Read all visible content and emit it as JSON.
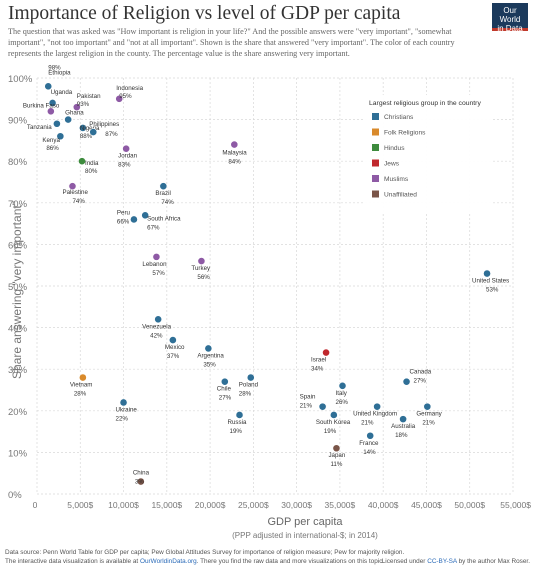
{
  "header": {
    "title": "Importance of Religion vs level of GDP per capita",
    "subtitle_1": "The question that was asked was \"How important is religion in your life?\" And the possible answers were \"very important\", \"somewhat important\", \"not too important\" and \"not at all important\". Shown is the share that answered \"very important\".",
    "subtitle_2": "The color of each country represents the largest religion in the county. The percentage value is the share answering very important.",
    "logo_line1": "Our World",
    "logo_line2": "in Data"
  },
  "footer": {
    "line1": "Data source: Penn World Table for GDP per capita; Pew Global Attitudes Survey for importance of religion measure; Pew for majority religion.",
    "line2_a": "The interactive data visualization is available at ",
    "line2_link": "OurWorldinData.org",
    "line2_b": ". There you find the raw data and more visualizations on this topic.",
    "license_a": "Licensed under ",
    "license_link": "CC-BY-SA",
    "license_b": " by the author Max Roser."
  },
  "colors": {
    "Christians": "#2f6f96",
    "Folk Religions": "#d98a2b",
    "Hindus": "#3d8b3d",
    "Jews": "#c0282d",
    "Muslims": "#8e5aa5",
    "Unaffiliated": "#7a5548",
    "grid": "#d8d8d8",
    "axis_text": "#777777"
  },
  "chart_data": {
    "type": "scatter",
    "xlabel": "GDP per capita",
    "xlabel_sub": "(PPP adjusted in international-$; in 2014)",
    "ylabel": "Share answering \"very important\"",
    "xlim": [
      0,
      55000
    ],
    "ylim": [
      0,
      100
    ],
    "x_ticks": [
      0,
      5000,
      10000,
      15000,
      20000,
      25000,
      30000,
      35000,
      40000,
      45000,
      50000,
      55000
    ],
    "x_tick_labels": [
      "0",
      "5,000$",
      "10,000$",
      "15,000$",
      "20,000$",
      "25,000$",
      "30,000$",
      "35,000$",
      "40,000$",
      "45,000$",
      "50,000$",
      "55,000$"
    ],
    "y_ticks": [
      0,
      10,
      20,
      30,
      40,
      50,
      60,
      70,
      80,
      90,
      100
    ],
    "y_tick_labels": [
      "0%",
      "10%",
      "20%",
      "30%",
      "40%",
      "50%",
      "60%",
      "70%",
      "80%",
      "90%",
      "100%"
    ],
    "grid": true,
    "legend": {
      "title": "Largest religious group in the country",
      "placement": "top-right",
      "entries": [
        "Christians",
        "Folk Religions",
        "Hindus",
        "Jews",
        "Muslims",
        "Unaffiliated"
      ]
    },
    "points": [
      {
        "country": "Ethiopia",
        "x": 1300,
        "y": 98,
        "religion": "Christians",
        "label": "98%"
      },
      {
        "country": "Uganda",
        "x": 1800,
        "y": 94,
        "religion": "Christians",
        "label": ""
      },
      {
        "country": "Pakistan",
        "x": 4600,
        "y": 93,
        "religion": "Muslims",
        "label": "93%"
      },
      {
        "country": "Burkina Faso",
        "x": 1600,
        "y": 92,
        "religion": "Muslims",
        "label": ""
      },
      {
        "country": "Ghana",
        "x": 3600,
        "y": 90,
        "religion": "Christians",
        "label": ""
      },
      {
        "country": "Tanzania",
        "x": 2300,
        "y": 89,
        "religion": "Christians",
        "label": ""
      },
      {
        "country": "Indonesia",
        "x": 9500,
        "y": 95,
        "religion": "Muslims",
        "label": "95%"
      },
      {
        "country": "Nigeria",
        "x": 5300,
        "y": 88,
        "religion": "Christians",
        "label": "88%"
      },
      {
        "country": "Philippines",
        "x": 6500,
        "y": 87,
        "religion": "Christians",
        "label": "87%"
      },
      {
        "country": "Kenya",
        "x": 2700,
        "y": 86,
        "religion": "Christians",
        "label": "86%"
      },
      {
        "country": "Jordan",
        "x": 10300,
        "y": 83,
        "religion": "Muslims",
        "label": "83%"
      },
      {
        "country": "India",
        "x": 5200,
        "y": 80,
        "religion": "Hindus",
        "label": "80%"
      },
      {
        "country": "Malaysia",
        "x": 22800,
        "y": 84,
        "religion": "Muslims",
        "label": "84%"
      },
      {
        "country": "Palestine",
        "x": 4100,
        "y": 74,
        "religion": "Muslims",
        "label": "74%"
      },
      {
        "country": "Brazil",
        "x": 14600,
        "y": 74,
        "religion": "Christians",
        "label": "74%"
      },
      {
        "country": "Peru",
        "x": 11200,
        "y": 66,
        "religion": "Christians",
        "label": "66%"
      },
      {
        "country": "South Africa",
        "x": 12500,
        "y": 67,
        "religion": "Christians",
        "label": "67%"
      },
      {
        "country": "Lebanon",
        "x": 13800,
        "y": 57,
        "religion": "Muslims",
        "label": "57%"
      },
      {
        "country": "Turkey",
        "x": 19000,
        "y": 56,
        "religion": "Muslims",
        "label": "56%"
      },
      {
        "country": "United States",
        "x": 52000,
        "y": 53,
        "religion": "Christians",
        "label": "53%"
      },
      {
        "country": "Venezuela",
        "x": 14000,
        "y": 42,
        "religion": "Christians",
        "label": "42%"
      },
      {
        "country": "Mexico",
        "x": 15700,
        "y": 37,
        "religion": "Christians",
        "label": "37%"
      },
      {
        "country": "Argentina",
        "x": 19800,
        "y": 35,
        "religion": "Christians",
        "label": "35%"
      },
      {
        "country": "Israel",
        "x": 33400,
        "y": 34,
        "religion": "Jews",
        "label": "34%"
      },
      {
        "country": "Vietnam",
        "x": 5300,
        "y": 28,
        "religion": "Folk Religions",
        "label": "28%"
      },
      {
        "country": "Chile",
        "x": 21700,
        "y": 27,
        "religion": "Christians",
        "label": "27%"
      },
      {
        "country": "Poland",
        "x": 24700,
        "y": 28,
        "religion": "Christians",
        "label": "28%"
      },
      {
        "country": "Canada",
        "x": 42700,
        "y": 27,
        "religion": "Christians",
        "label": "27%"
      },
      {
        "country": "Italy",
        "x": 35300,
        "y": 26,
        "religion": "Christians",
        "label": "26%"
      },
      {
        "country": "Spain",
        "x": 33000,
        "y": 21,
        "religion": "Christians",
        "label": "21%"
      },
      {
        "country": "Ukraine",
        "x": 10000,
        "y": 22,
        "religion": "Christians",
        "label": "22%"
      },
      {
        "country": "United Kingdom",
        "x": 39300,
        "y": 21,
        "religion": "Christians",
        "label": "21%"
      },
      {
        "country": "Germany",
        "x": 45100,
        "y": 21,
        "religion": "Christians",
        "label": "21%"
      },
      {
        "country": "Australia",
        "x": 42300,
        "y": 18,
        "religion": "Christians",
        "label": "18%"
      },
      {
        "country": "South Korea",
        "x": 34300,
        "y": 19,
        "religion": "Christians",
        "label": "19%"
      },
      {
        "country": "Russia",
        "x": 23400,
        "y": 19,
        "religion": "Christians",
        "label": "19%"
      },
      {
        "country": "France",
        "x": 38500,
        "y": 14,
        "religion": "Christians",
        "label": "14%"
      },
      {
        "country": "Japan",
        "x": 34600,
        "y": 11,
        "religion": "Unaffiliated",
        "label": "11%"
      },
      {
        "country": "China",
        "x": 12000,
        "y": 3,
        "religion": "Unaffiliated",
        "label": "3%"
      }
    ]
  }
}
